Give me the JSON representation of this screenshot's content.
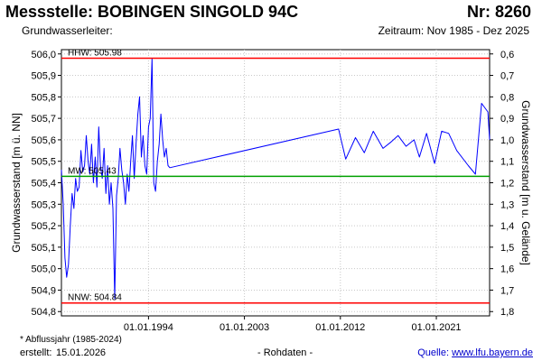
{
  "header": {
    "title": "Messstelle: BOBINGEN SINGOLD 94C",
    "nr": "Nr: 8260",
    "aquifer": "Grundwasserleiter:",
    "period": "Zeitraum: Nov 1985 - Dez 2025"
  },
  "footer": {
    "footnote": "* Abflussjahr (1985-2024)",
    "created_label": "erstellt:",
    "created_date": "15.01.2026",
    "rawdata": "- Rohdaten -",
    "source_label": "Quelle:",
    "source_link": "www.lfu.bayern.de"
  },
  "chart_data": {
    "type": "line",
    "ylabel_left": "Grundwasserstand [m ü. NN]",
    "ylabel_right": "Grundwasserstand [m u. Gelände]",
    "ylim": [
      504.78,
      506.02
    ],
    "yticks_left": [
      "506,0",
      "505,9",
      "505,8",
      "505,7",
      "505,6",
      "505,5",
      "505,4",
      "505,3",
      "505,2",
      "505,1",
      "505,0",
      "504,9",
      "504,8"
    ],
    "yticks_left_values": [
      506.0,
      505.9,
      505.8,
      505.7,
      505.6,
      505.5,
      505.4,
      505.3,
      505.2,
      505.1,
      505.0,
      504.9,
      504.8
    ],
    "yticks_right": [
      "0,6",
      "0,7",
      "0,8",
      "0,9",
      "1,0",
      "1,1",
      "1,2",
      "1,3",
      "1,4",
      "1,5",
      "1,6",
      "1,7",
      "1,8"
    ],
    "yticks_right_values": [
      0.6,
      0.7,
      0.8,
      0.9,
      1.0,
      1.1,
      1.2,
      1.3,
      1.4,
      1.5,
      1.6,
      1.7,
      1.8
    ],
    "xlim": [
      "1985-11-01",
      "2025-12-31"
    ],
    "xticks": [
      "01.01.1994",
      "01.01.2003",
      "01.01.2012",
      "01.01.2021"
    ],
    "xtick_dates": [
      "1994-01-01",
      "2003-01-01",
      "2012-01-01",
      "2021-01-01"
    ],
    "reference_lines": [
      {
        "label": "HHW: 505.98",
        "value": 505.98,
        "color": "#ff0000"
      },
      {
        "label": "MW: 505.43",
        "value": 505.43,
        "color": "#00a000"
      },
      {
        "label": "NNW: 504.84",
        "value": 504.84,
        "color": "#ff0000"
      }
    ],
    "series": [
      {
        "color": "#0000ff",
        "points": [
          [
            "1985-11-01",
            505.46
          ],
          [
            "1986-01-01",
            505.3
          ],
          [
            "1986-03-01",
            505.05
          ],
          [
            "1986-05-01",
            504.96
          ],
          [
            "1986-07-01",
            505.02
          ],
          [
            "1986-09-01",
            505.2
          ],
          [
            "1986-11-01",
            505.35
          ],
          [
            "1987-01-01",
            505.28
          ],
          [
            "1987-03-01",
            505.42
          ],
          [
            "1987-05-01",
            505.36
          ],
          [
            "1987-07-01",
            505.38
          ],
          [
            "1987-09-01",
            505.55
          ],
          [
            "1987-11-01",
            505.45
          ],
          [
            "1988-01-01",
            505.48
          ],
          [
            "1988-03-01",
            505.62
          ],
          [
            "1988-05-01",
            505.5
          ],
          [
            "1988-07-01",
            505.44
          ],
          [
            "1988-09-01",
            505.58
          ],
          [
            "1988-11-01",
            505.4
          ],
          [
            "1989-01-01",
            505.52
          ],
          [
            "1989-03-01",
            505.38
          ],
          [
            "1989-05-01",
            505.66
          ],
          [
            "1989-07-01",
            505.48
          ],
          [
            "1989-09-01",
            505.42
          ],
          [
            "1989-11-01",
            505.56
          ],
          [
            "1990-01-01",
            505.35
          ],
          [
            "1990-03-01",
            505.48
          ],
          [
            "1990-05-01",
            505.3
          ],
          [
            "1990-07-01",
            505.4
          ],
          [
            "1990-09-01",
            505.28
          ],
          [
            "1990-11-01",
            504.86
          ],
          [
            "1991-01-01",
            505.34
          ],
          [
            "1991-03-01",
            505.42
          ],
          [
            "1991-05-01",
            505.56
          ],
          [
            "1991-07-01",
            505.46
          ],
          [
            "1991-09-01",
            505.4
          ],
          [
            "1991-11-01",
            505.3
          ],
          [
            "1992-01-01",
            505.44
          ],
          [
            "1992-03-01",
            505.36
          ],
          [
            "1992-05-01",
            505.5
          ],
          [
            "1992-07-01",
            505.62
          ],
          [
            "1992-09-01",
            505.42
          ],
          [
            "1992-11-01",
            505.58
          ],
          [
            "1993-01-01",
            505.72
          ],
          [
            "1993-03-01",
            505.8
          ],
          [
            "1993-05-01",
            505.52
          ],
          [
            "1993-07-01",
            505.62
          ],
          [
            "1993-09-01",
            505.48
          ],
          [
            "1993-11-01",
            505.44
          ],
          [
            "1994-01-01",
            505.66
          ],
          [
            "1994-03-01",
            505.7
          ],
          [
            "1994-05-01",
            505.98
          ],
          [
            "1994-07-01",
            505.4
          ],
          [
            "1994-09-01",
            505.36
          ],
          [
            "1994-11-01",
            505.5
          ],
          [
            "1995-01-01",
            505.58
          ],
          [
            "1995-03-01",
            505.72
          ],
          [
            "1995-05-01",
            505.6
          ],
          [
            "1995-07-01",
            505.52
          ],
          [
            "1995-09-01",
            505.56
          ],
          [
            "1995-11-01",
            505.48
          ],
          [
            "1996-01-01",
            505.47
          ],
          [
            "2011-11-01",
            505.65
          ],
          [
            "2012-07-01",
            505.51
          ],
          [
            "2013-06-01",
            505.61
          ],
          [
            "2014-04-01",
            505.54
          ],
          [
            "2015-02-01",
            505.64
          ],
          [
            "2016-01-01",
            505.56
          ],
          [
            "2016-10-01",
            505.59
          ],
          [
            "2017-06-01",
            505.62
          ],
          [
            "2018-03-01",
            505.57
          ],
          [
            "2018-12-01",
            505.6
          ],
          [
            "2019-06-01",
            505.52
          ],
          [
            "2020-02-01",
            505.63
          ],
          [
            "2020-11-01",
            505.49
          ],
          [
            "2021-07-01",
            505.64
          ],
          [
            "2022-03-01",
            505.63
          ],
          [
            "2022-12-01",
            505.55
          ],
          [
            "2024-01-01",
            505.48
          ],
          [
            "2024-09-01",
            505.44
          ],
          [
            "2025-04-01",
            505.77
          ],
          [
            "2025-11-01",
            505.73
          ],
          [
            "2025-12-31",
            505.6
          ]
        ]
      }
    ]
  }
}
